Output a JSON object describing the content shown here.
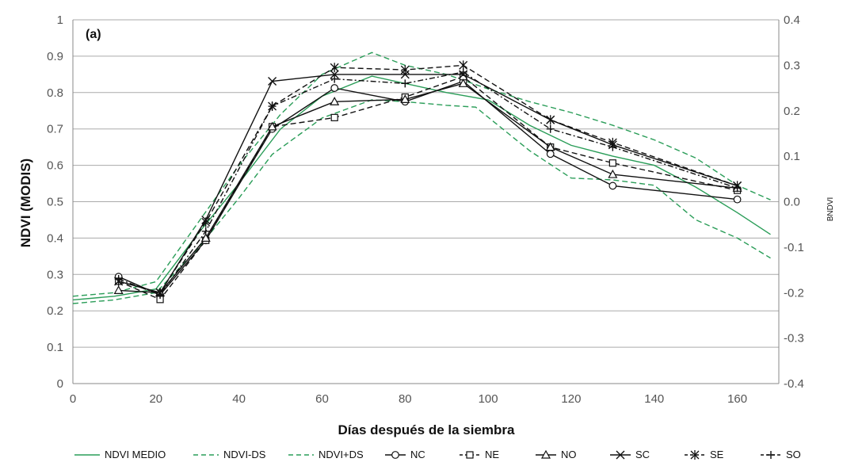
{
  "chart_data": {
    "type": "line",
    "panel_label": "(a)",
    "xlabel": "Días después de la siembra",
    "ylabel": "NDVI (MODIS)",
    "y2label": "BNDVI",
    "xlim": [
      0,
      170
    ],
    "ylim": [
      0,
      1
    ],
    "y2lim": [
      -0.4,
      0.4
    ],
    "xticks": [
      0,
      20,
      40,
      60,
      80,
      100,
      120,
      140,
      160
    ],
    "yticks": [
      0,
      0.1,
      0.2,
      0.3,
      0.4,
      0.5,
      0.6,
      0.7,
      0.8,
      0.9,
      1
    ],
    "y2ticks": [
      -0.4,
      -0.3,
      -0.2,
      -0.1,
      0.0,
      0.1,
      0.2,
      0.3,
      0.4
    ],
    "xtick_labels": [
      "0",
      "20",
      "40",
      "60",
      "80",
      "100",
      "120",
      "140",
      "160"
    ],
    "ytick_labels": [
      "0",
      "0.1",
      "0.2",
      "0.3",
      "0.4",
      "0.5",
      "0.6",
      "0.7",
      "0.8",
      "0.9",
      "1"
    ],
    "y2tick_labels": [
      "-0.4",
      "-0.3",
      "-0.2",
      "-0.1",
      "0.0",
      "0.1",
      "0.2",
      "0.3",
      "0.4"
    ],
    "grid": "horizontal",
    "legend_position": "bottom",
    "colors": {
      "green": "#2a9d58",
      "black": "#111111",
      "grid": "#aaaaaa",
      "axis": "#888888"
    },
    "series": [
      {
        "name": "NDVI MEDIO",
        "axis": "left",
        "color": "#2a9d58",
        "dash": "solid",
        "marker": "none",
        "x": [
          0,
          10,
          20,
          30,
          40,
          50,
          60,
          72,
          80,
          90,
          100,
          110,
          120,
          130,
          140,
          150,
          160,
          168
        ],
        "y": [
          0.23,
          0.24,
          0.26,
          0.41,
          0.55,
          0.7,
          0.79,
          0.845,
          0.825,
          0.8,
          0.78,
          0.71,
          0.655,
          0.625,
          0.6,
          0.54,
          0.47,
          0.41
        ]
      },
      {
        "name": "NDVI-DS",
        "axis": "left",
        "color": "#2a9d58",
        "dash": "dashed",
        "marker": "none",
        "x": [
          0,
          10,
          20,
          30,
          40,
          48,
          60,
          72,
          80,
          90,
          97,
          110,
          120,
          130,
          140,
          150,
          160,
          168
        ],
        "y": [
          0.22,
          0.23,
          0.25,
          0.37,
          0.51,
          0.63,
          0.73,
          0.78,
          0.775,
          0.765,
          0.76,
          0.64,
          0.565,
          0.56,
          0.545,
          0.45,
          0.4,
          0.345
        ]
      },
      {
        "name": "NDVI+DS",
        "axis": "left",
        "color": "#2a9d58",
        "dash": "dashed",
        "marker": "none",
        "x": [
          0,
          10,
          20,
          30,
          40,
          50,
          60,
          72,
          80,
          90,
          100,
          110,
          120,
          130,
          140,
          150,
          160,
          168
        ],
        "y": [
          0.24,
          0.25,
          0.28,
          0.44,
          0.6,
          0.74,
          0.85,
          0.91,
          0.875,
          0.85,
          0.81,
          0.775,
          0.745,
          0.71,
          0.67,
          0.62,
          0.545,
          0.505
        ]
      },
      {
        "name": "NC",
        "axis": "right",
        "color": "#111111",
        "dash": "solid",
        "marker": "circle",
        "x": [
          11,
          21,
          32,
          48,
          63,
          80,
          94,
          115,
          130,
          160
        ],
        "y": [
          -0.165,
          -0.205,
          -0.085,
          0.16,
          0.25,
          0.22,
          0.265,
          0.105,
          0.035,
          0.005
        ]
      },
      {
        "name": "NE",
        "axis": "right",
        "color": "#111111",
        "dash": "dashed",
        "marker": "square",
        "x": [
          11,
          21,
          32,
          48,
          63,
          80,
          94,
          115,
          130,
          160
        ],
        "y": [
          -0.175,
          -0.215,
          -0.085,
          0.165,
          0.185,
          0.23,
          0.275,
          0.12,
          0.085,
          0.025
        ]
      },
      {
        "name": "NO",
        "axis": "right",
        "color": "#111111",
        "dash": "solid",
        "marker": "triangle",
        "x": [
          11,
          21,
          32,
          48,
          63,
          80,
          94,
          115,
          130,
          160
        ],
        "y": [
          -0.195,
          -0.2,
          -0.08,
          0.165,
          0.22,
          0.225,
          0.26,
          0.12,
          0.06,
          0.03
        ]
      },
      {
        "name": "SC",
        "axis": "right",
        "color": "#111111",
        "dash": "solid",
        "marker": "x",
        "x": [
          11,
          21,
          32,
          48,
          63,
          80,
          94,
          115,
          130,
          160
        ],
        "y": [
          -0.175,
          -0.2,
          -0.04,
          0.265,
          0.28,
          0.28,
          0.28,
          0.18,
          0.125,
          0.035
        ]
      },
      {
        "name": "SE",
        "axis": "right",
        "color": "#111111",
        "dash": "dashed",
        "marker": "star",
        "x": [
          11,
          21,
          32,
          48,
          63,
          80,
          94,
          115,
          130,
          160
        ],
        "y": [
          -0.175,
          -0.2,
          -0.045,
          0.21,
          0.295,
          0.29,
          0.3,
          0.18,
          0.13,
          0.035
        ]
      },
      {
        "name": "SO",
        "axis": "right",
        "color": "#111111",
        "dash": "dashdot",
        "marker": "plus",
        "x": [
          11,
          21,
          32,
          48,
          63,
          80,
          94,
          115,
          130,
          160
        ],
        "y": [
          -0.17,
          -0.205,
          -0.065,
          0.21,
          0.27,
          0.26,
          0.285,
          0.16,
          0.12,
          0.03
        ]
      }
    ]
  }
}
